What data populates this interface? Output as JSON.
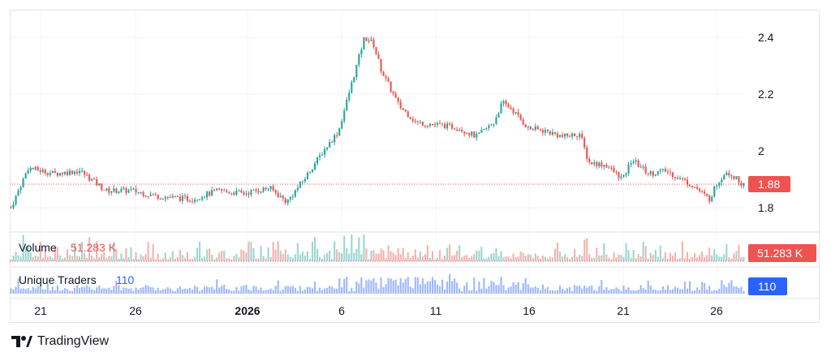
{
  "brand": {
    "name": "TradingView"
  },
  "colors": {
    "up": "#26a69a",
    "down": "#ef5350",
    "traders": "#2962ff",
    "price_line": "#ef5350"
  },
  "chart_data": {
    "type": "candlestick",
    "x_ticks": [
      "21",
      "26",
      "2026",
      "6",
      "11",
      "16",
      "21",
      "26"
    ],
    "y_ticks": [
      "2.4",
      "2.2",
      "2",
      "1.8"
    ],
    "ylim": [
      1.76,
      2.44
    ],
    "last_price": "1.88",
    "price_path": [
      [
        0,
        1.8
      ],
      [
        2,
        1.94
      ],
      [
        5,
        1.92
      ],
      [
        8,
        1.93
      ],
      [
        11,
        1.86
      ],
      [
        14,
        1.86
      ],
      [
        17,
        1.84
      ],
      [
        21,
        1.83
      ],
      [
        24,
        1.86
      ],
      [
        27,
        1.85
      ],
      [
        30,
        1.87
      ],
      [
        32,
        1.82
      ],
      [
        34,
        1.9
      ],
      [
        36,
        1.99
      ],
      [
        38,
        2.07
      ],
      [
        39,
        2.18
      ],
      [
        41,
        2.4
      ],
      [
        42,
        2.38
      ],
      [
        43,
        2.28
      ],
      [
        45,
        2.16
      ],
      [
        47,
        2.1
      ],
      [
        50,
        2.09
      ],
      [
        52,
        2.08
      ],
      [
        54,
        2.05
      ],
      [
        56,
        2.1
      ],
      [
        57,
        2.17
      ],
      [
        58,
        2.15
      ],
      [
        60,
        2.08
      ],
      [
        62,
        2.07
      ],
      [
        64,
        2.05
      ],
      [
        66,
        2.06
      ],
      [
        67,
        1.96
      ],
      [
        69,
        1.95
      ],
      [
        71,
        1.9
      ],
      [
        72,
        1.97
      ],
      [
        74,
        1.92
      ],
      [
        76,
        1.93
      ],
      [
        79,
        1.88
      ],
      [
        81,
        1.83
      ],
      [
        82,
        1.89
      ],
      [
        83,
        1.93
      ],
      [
        85,
        1.88
      ]
    ],
    "volume": {
      "title": "Volume",
      "value": "51.283 K"
    },
    "unique_traders": {
      "title": "Unique Traders",
      "value": "110"
    }
  }
}
